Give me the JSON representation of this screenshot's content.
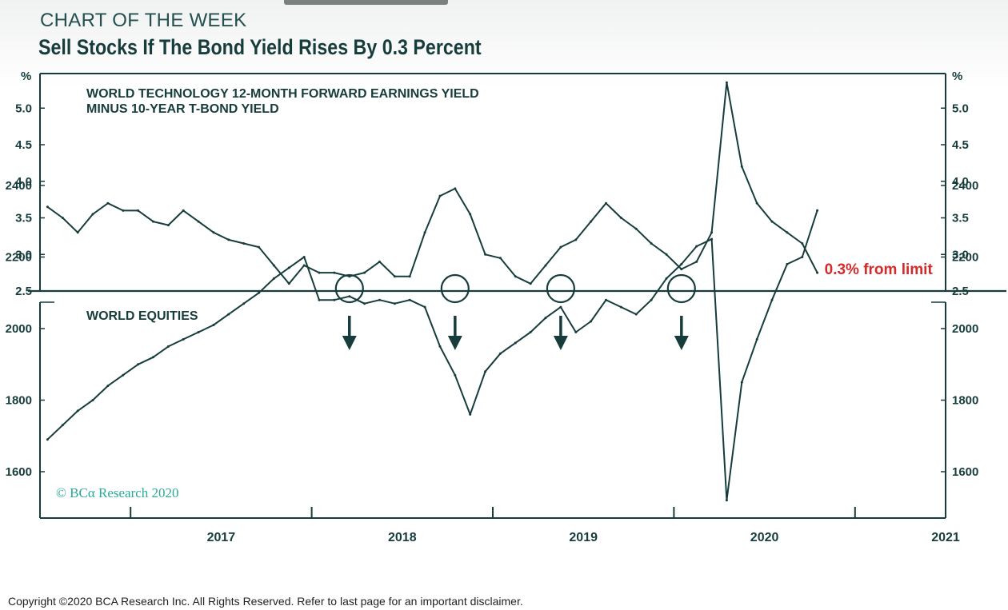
{
  "header": {
    "kicker": "CHART OF THE WEEK",
    "title": "Sell Stocks If The Bond Yield Rises By 0.3 Percent"
  },
  "colors": {
    "line": "#173c3c",
    "annotation": "#d42a2a",
    "credit": "#2aa89a"
  },
  "chart_data": [
    {
      "type": "line",
      "title": "WORLD TECHNOLOGY 12-MONTH FORWARD EARNINGS YIELD",
      "subtitle": "MINUS 10-YEAR T-BOND YIELD",
      "ylabel": "%",
      "ylim": [
        2.5,
        5.4
      ],
      "yticks": [
        "2.5",
        "3.0",
        "3.5",
        "4.0",
        "4.5",
        "5.0"
      ],
      "grid": false,
      "annotation": "0.3% from limit",
      "circled_lows": [
        "2018-03",
        "2018-10",
        "2019-05",
        "2020-01"
      ],
      "series": [
        {
          "x": [
            "2016-07",
            "2016-08",
            "2016-09",
            "2016-10",
            "2016-11",
            "2016-12",
            "2017-01",
            "2017-02",
            "2017-03",
            "2017-04",
            "2017-05",
            "2017-06",
            "2017-07",
            "2017-08",
            "2017-09",
            "2017-10",
            "2017-11",
            "2017-12",
            "2018-01",
            "2018-02",
            "2018-03",
            "2018-04",
            "2018-05",
            "2018-06",
            "2018-07",
            "2018-08",
            "2018-09",
            "2018-10",
            "2018-11",
            "2018-12",
            "2019-01",
            "2019-02",
            "2019-03",
            "2019-04",
            "2019-05",
            "2019-06",
            "2019-07",
            "2019-08",
            "2019-09",
            "2019-10",
            "2019-11",
            "2019-12",
            "2020-01",
            "2020-02",
            "2020-03",
            "2020-04",
            "2020-05",
            "2020-06",
            "2020-07",
            "2020-08",
            "2020-09",
            "2020-10"
          ],
          "y": [
            3.65,
            3.5,
            3.3,
            3.55,
            3.7,
            3.6,
            3.6,
            3.45,
            3.4,
            3.6,
            3.45,
            3.3,
            3.2,
            3.15,
            3.1,
            2.85,
            2.6,
            2.85,
            2.75,
            2.75,
            2.7,
            2.75,
            2.9,
            2.7,
            2.7,
            3.3,
            3.8,
            3.9,
            3.55,
            3.0,
            2.95,
            2.7,
            2.6,
            2.85,
            3.1,
            3.2,
            3.45,
            3.7,
            3.5,
            3.35,
            3.15,
            3.0,
            2.8,
            2.9,
            3.3,
            5.35,
            4.2,
            3.7,
            3.45,
            3.3,
            3.15,
            2.75
          ]
        }
      ]
    },
    {
      "type": "line",
      "title": "WORLD EQUITIES",
      "ylim": [
        1450,
        2450
      ],
      "yticks": [
        "1600",
        "1800",
        "2000",
        "2200",
        "2400"
      ],
      "grid": false,
      "arrows_at": [
        "2018-03",
        "2018-10",
        "2019-05",
        "2020-01"
      ],
      "series": [
        {
          "x": [
            "2016-07",
            "2016-08",
            "2016-09",
            "2016-10",
            "2016-11",
            "2016-12",
            "2017-01",
            "2017-02",
            "2017-03",
            "2017-04",
            "2017-05",
            "2017-06",
            "2017-07",
            "2017-08",
            "2017-09",
            "2017-10",
            "2017-11",
            "2017-12",
            "2018-01",
            "2018-02",
            "2018-03",
            "2018-04",
            "2018-05",
            "2018-06",
            "2018-07",
            "2018-08",
            "2018-09",
            "2018-10",
            "2018-11",
            "2018-12",
            "2019-01",
            "2019-02",
            "2019-03",
            "2019-04",
            "2019-05",
            "2019-06",
            "2019-07",
            "2019-08",
            "2019-09",
            "2019-10",
            "2019-11",
            "2019-12",
            "2020-01",
            "2020-02",
            "2020-03",
            "2020-04",
            "2020-05",
            "2020-06",
            "2020-07",
            "2020-08",
            "2020-09",
            "2020-10"
          ],
          "y": [
            1690,
            1730,
            1770,
            1800,
            1840,
            1870,
            1900,
            1920,
            1950,
            1970,
            1990,
            2010,
            2040,
            2070,
            2100,
            2140,
            2170,
            2200,
            2080,
            2080,
            2090,
            2070,
            2080,
            2070,
            2080,
            2060,
            1950,
            1870,
            1760,
            1880,
            1930,
            1960,
            1990,
            2030,
            2060,
            1990,
            2020,
            2080,
            2060,
            2040,
            2080,
            2140,
            2180,
            2230,
            2250,
            1520,
            1850,
            1970,
            2080,
            2180,
            2200,
            2330
          ]
        }
      ]
    }
  ],
  "x_axis": {
    "year_labels": [
      "2017",
      "2018",
      "2019",
      "2020",
      "2021"
    ]
  },
  "credit": "© BCα Research 2020",
  "footer": "Copyright ©2020 BCA Research Inc. All Rights Reserved. Refer to last page for an important disclaimer."
}
